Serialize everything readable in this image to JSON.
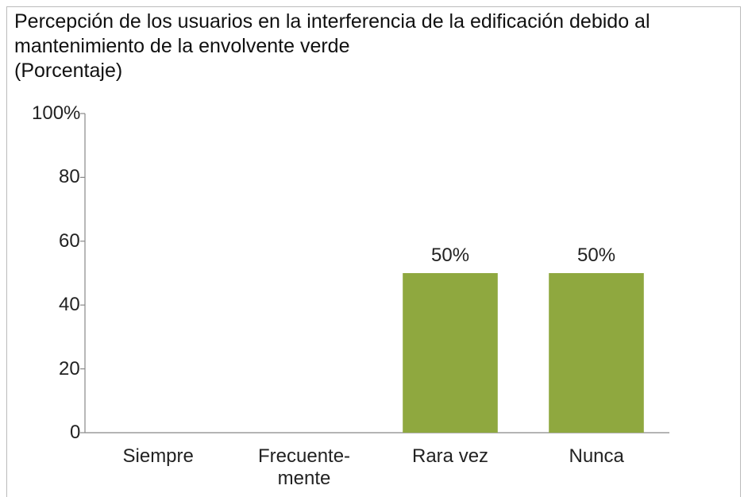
{
  "chart_data": {
    "type": "bar",
    "title": "Percepción de los usuarios en la interferencia de la edificación debido al mantenimiento de la envolvente verde",
    "subtitle": "(Porcentaje)",
    "categories": [
      "Siempre",
      "Frecuente-\nmente",
      "Rara vez",
      "Nunca"
    ],
    "values": [
      0,
      0,
      50,
      50
    ],
    "value_labels": [
      null,
      null,
      "50%",
      "50%"
    ],
    "color": "#8fa83f",
    "ylim": [
      0,
      100
    ],
    "yticks": [
      0,
      20,
      40,
      60,
      80,
      {
        "value": 100,
        "label": "100%"
      }
    ],
    "grid": false
  }
}
